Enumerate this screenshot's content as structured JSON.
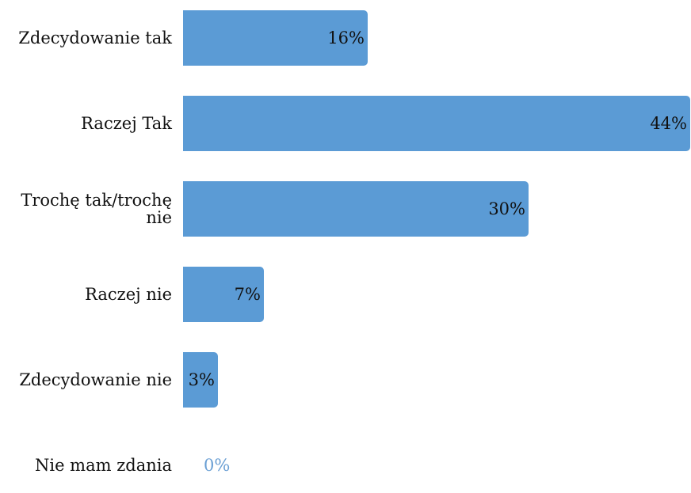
{
  "chart_data": {
    "type": "bar",
    "orientation": "horizontal",
    "categories": [
      "Zdecydowanie tak",
      "Raczej Tak",
      "Trochę tak/trochę nie",
      "Raczej nie",
      "Zdecydowanie nie",
      "Nie mam zdania"
    ],
    "values": [
      16,
      44,
      30,
      7,
      3,
      0
    ],
    "value_labels": [
      "16%",
      "44%",
      "30%",
      "7%",
      "3%",
      "0%"
    ],
    "unit": "%",
    "xlim": [
      0,
      44
    ],
    "grid": false,
    "bar_color": "#5b9bd5",
    "zero_label_color": "#6a9fd4"
  }
}
